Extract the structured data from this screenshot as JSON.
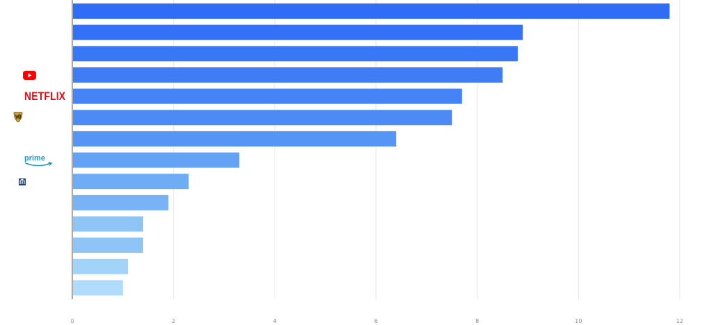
{
  "chart_data": {
    "type": "bar",
    "orientation": "horizontal",
    "values": [
      11.8,
      8.9,
      8.8,
      8.5,
      7.7,
      7.5,
      6.4,
      3.3,
      2.3,
      1.9,
      1.4,
      1.4,
      1.1,
      1.0
    ],
    "xlim": [
      0,
      12
    ],
    "x_ticks": [
      "0",
      "2",
      "4",
      "6",
      "8",
      "10",
      "12"
    ],
    "grid": "vertical",
    "bar_colors": [
      "#2f6df6",
      "#3372f6",
      "#3877f6",
      "#3e7df6",
      "#4584f6",
      "#4c8bf5",
      "#5595f5",
      "#63a2f5",
      "#6eadf5",
      "#78b3f5",
      "#8ec5f7",
      "#8ec5f7",
      "#a2d3f9",
      "#b1dbfa"
    ],
    "category_logos": [
      "",
      "",
      "",
      "youtube-logo",
      "netflix-logo",
      "warner-bros-logo",
      "",
      "prime-video-logo",
      "bank-logo",
      "",
      "",
      "",
      "",
      ""
    ],
    "xlabel": "",
    "ylabel": "",
    "title": ""
  },
  "logos": {
    "netflix": "NETFLIX",
    "prime": "prime"
  },
  "colors": {
    "axis": "#555555",
    "grid": "#e6e6e6",
    "youtube_red": "#ff0000",
    "netflix_red": "#e50914",
    "wb_gold": "#c8a13a",
    "prime_blue": "#1a98c9"
  }
}
